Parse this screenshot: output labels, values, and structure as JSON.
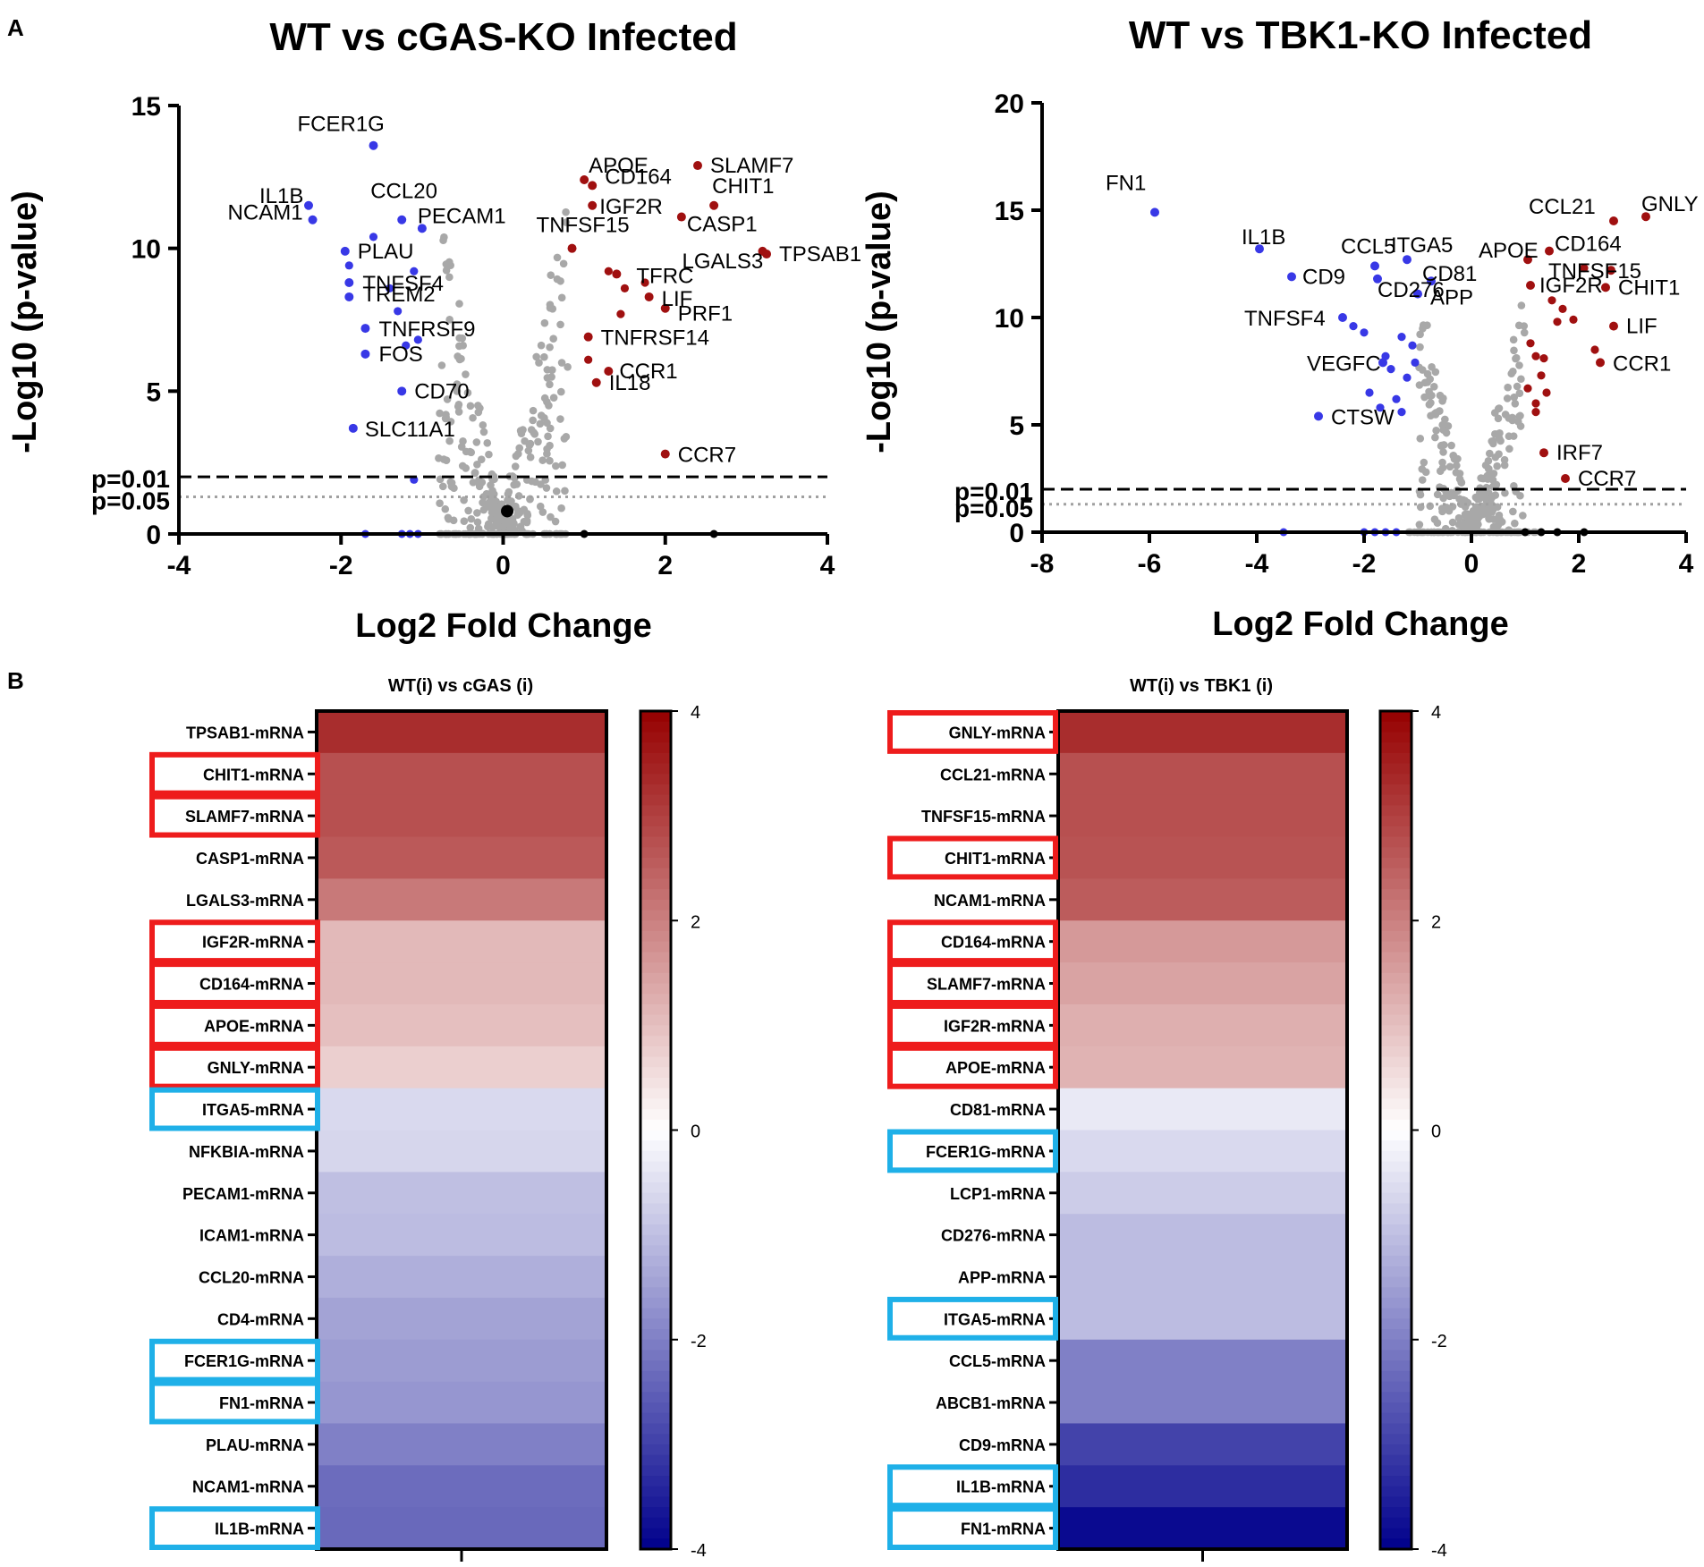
{
  "panels": {
    "a": "A",
    "b": "B"
  },
  "chart_data": [
    {
      "type": "scatter",
      "title": "WT vs cGAS-KO Infected",
      "xlabel": "Log2 Fold Change",
      "ylabel": "-Log10 (p-value)",
      "xlim": [
        -4,
        4
      ],
      "ylim": [
        0,
        15
      ],
      "xticks": [
        "-4",
        "-2",
        "0",
        "2",
        "4"
      ],
      "yticks": [
        "0",
        "5",
        "10",
        "15"
      ],
      "thresholds": [
        {
          "label": "p=0.01",
          "y": 2.0,
          "style": "dashed"
        },
        {
          "label": "p=0.05",
          "y": 1.3,
          "style": "dotted"
        }
      ],
      "colors": {
        "down": "#3838e6",
        "up": "#a01010",
        "ns": "#a8a8a8",
        "zero": "#000000"
      },
      "labeled_points": [
        {
          "gene": "FCER1G",
          "x": -1.6,
          "y": 13.6,
          "dir": "down"
        },
        {
          "gene": "IL1B",
          "x": -2.4,
          "y": 11.5,
          "dir": "down"
        },
        {
          "gene": "NCAM1",
          "x": -2.35,
          "y": 11.0,
          "dir": "down"
        },
        {
          "gene": "CCL20",
          "x": -1.25,
          "y": 11.0,
          "dir": "down"
        },
        {
          "gene": "PECAM1",
          "x": -1.0,
          "y": 10.7,
          "dir": "down"
        },
        {
          "gene": "PLAU",
          "x": -1.95,
          "y": 9.9,
          "dir": "down"
        },
        {
          "gene": "TNFSF4",
          "x": -1.9,
          "y": 8.8,
          "dir": "down"
        },
        {
          "gene": "TREM2",
          "x": -1.9,
          "y": 8.3,
          "dir": "down"
        },
        {
          "gene": "TNFRSF9",
          "x": -1.7,
          "y": 7.2,
          "dir": "down"
        },
        {
          "gene": "FOS",
          "x": -1.7,
          "y": 6.3,
          "dir": "down"
        },
        {
          "gene": "CD70",
          "x": -1.25,
          "y": 5.0,
          "dir": "down"
        },
        {
          "gene": "SLC11A1",
          "x": -1.85,
          "y": 3.7,
          "dir": "down"
        },
        {
          "gene": "APOE",
          "x": 1.0,
          "y": 12.4,
          "dir": "up"
        },
        {
          "gene": "SLAMF7",
          "x": 2.4,
          "y": 12.9,
          "dir": "up"
        },
        {
          "gene": "CD164",
          "x": 1.1,
          "y": 12.2,
          "dir": "up"
        },
        {
          "gene": "CHIT1",
          "x": 2.6,
          "y": 11.5,
          "dir": "up"
        },
        {
          "gene": "IGF2R",
          "x": 1.1,
          "y": 11.5,
          "dir": "up"
        },
        {
          "gene": "CASP1",
          "x": 2.2,
          "y": 11.1,
          "dir": "up"
        },
        {
          "gene": "TNFSF15",
          "x": 0.85,
          "y": 10.0,
          "dir": "up"
        },
        {
          "gene": "LGALS3",
          "x": 3.2,
          "y": 9.9,
          "dir": "up"
        },
        {
          "gene": "TPSAB1",
          "x": 3.25,
          "y": 9.8,
          "dir": "up"
        },
        {
          "gene": "TFRC",
          "x": 1.4,
          "y": 9.1,
          "dir": "up"
        },
        {
          "gene": "LIF",
          "x": 1.8,
          "y": 8.3,
          "dir": "up"
        },
        {
          "gene": "PRF1",
          "x": 2.0,
          "y": 7.9,
          "dir": "up"
        },
        {
          "gene": "TNFRSF14",
          "x": 1.05,
          "y": 6.9,
          "dir": "up"
        },
        {
          "gene": "CCR1",
          "x": 1.3,
          "y": 5.7,
          "dir": "up"
        },
        {
          "gene": "IL18",
          "x": 1.15,
          "y": 5.3,
          "dir": "up"
        },
        {
          "gene": "CCR7",
          "x": 2.0,
          "y": 2.8,
          "dir": "up"
        }
      ]
    },
    {
      "type": "scatter",
      "title": "WT vs TBK1-KO Infected",
      "xlabel": "Log2 Fold Change",
      "ylabel": "-Log10 (p-value)",
      "xlim": [
        -8,
        4
      ],
      "ylim": [
        0,
        20
      ],
      "xticks": [
        "-8",
        "-6",
        "-4",
        "-2",
        "0",
        "2",
        "4"
      ],
      "yticks": [
        "0",
        "5",
        "10",
        "15",
        "20"
      ],
      "thresholds": [
        {
          "label": "p=0.01",
          "y": 2.0,
          "style": "dashed"
        },
        {
          "label": "p=0.05",
          "y": 1.3,
          "style": "dotted"
        }
      ],
      "colors": {
        "down": "#3838e6",
        "up": "#a01010",
        "ns": "#a8a8a8",
        "zero": "#000000"
      },
      "labeled_points": [
        {
          "gene": "FN1",
          "x": -5.9,
          "y": 14.9,
          "dir": "down"
        },
        {
          "gene": "IL1B",
          "x": -3.95,
          "y": 13.2,
          "dir": "down"
        },
        {
          "gene": "CD9",
          "x": -3.35,
          "y": 11.9,
          "dir": "down"
        },
        {
          "gene": "CCL5",
          "x": -1.8,
          "y": 12.4,
          "dir": "down"
        },
        {
          "gene": "ITGA5",
          "x": -1.2,
          "y": 12.7,
          "dir": "down"
        },
        {
          "gene": "CD276",
          "x": -1.75,
          "y": 11.8,
          "dir": "down"
        },
        {
          "gene": "CD81",
          "x": -0.75,
          "y": 11.7,
          "dir": "down"
        },
        {
          "gene": "APP",
          "x": -1.0,
          "y": 11.1,
          "dir": "down"
        },
        {
          "gene": "TNFSF4",
          "x": -2.4,
          "y": 10.0,
          "dir": "down"
        },
        {
          "gene": "VEGFC",
          "x": -1.65,
          "y": 7.9,
          "dir": "down"
        },
        {
          "gene": "CTSW",
          "x": -2.85,
          "y": 5.4,
          "dir": "down"
        },
        {
          "gene": "APOE",
          "x": 1.05,
          "y": 12.7,
          "dir": "up"
        },
        {
          "gene": "CD164",
          "x": 1.45,
          "y": 13.1,
          "dir": "up"
        },
        {
          "gene": "CCL21",
          "x": 2.65,
          "y": 14.5,
          "dir": "up"
        },
        {
          "gene": "GNLY",
          "x": 3.25,
          "y": 14.7,
          "dir": "up"
        },
        {
          "gene": "TNFSF15",
          "x": 2.6,
          "y": 12.2,
          "dir": "up"
        },
        {
          "gene": "IGF2R",
          "x": 1.1,
          "y": 11.5,
          "dir": "up"
        },
        {
          "gene": "CHIT1",
          "x": 2.5,
          "y": 11.4,
          "dir": "up"
        },
        {
          "gene": "LIF",
          "x": 2.65,
          "y": 9.6,
          "dir": "up"
        },
        {
          "gene": "CCR1",
          "x": 2.4,
          "y": 7.9,
          "dir": "up"
        },
        {
          "gene": "IRF7",
          "x": 1.35,
          "y": 3.7,
          "dir": "up"
        },
        {
          "gene": "CCR7",
          "x": 1.75,
          "y": 2.5,
          "dir": "up"
        }
      ]
    },
    {
      "type": "heatmap",
      "title": "WT(i) vs cGAS (i)",
      "colorbar": {
        "min": -4,
        "max": 4,
        "ticks": [
          "4",
          "2",
          "0",
          "-2",
          "-4"
        ]
      },
      "highlight_colors": {
        "up": "#ee1c1c",
        "down": "#1fb0e8"
      },
      "rows": [
        {
          "label": "TPSAB1-mRNA",
          "value": 3.3,
          "box": ""
        },
        {
          "label": "CHIT1-mRNA",
          "value": 2.75,
          "box": "up"
        },
        {
          "label": "SLAMF7-mRNA",
          "value": 2.75,
          "box": "up"
        },
        {
          "label": "CASP1-mRNA",
          "value": 2.6,
          "box": ""
        },
        {
          "label": "LGALS3-mRNA",
          "value": 2.1,
          "box": ""
        },
        {
          "label": "IGF2R-mRNA",
          "value": 1.1,
          "box": "up"
        },
        {
          "label": "CD164-mRNA",
          "value": 1.1,
          "box": "up"
        },
        {
          "label": "APOE-mRNA",
          "value": 1.0,
          "box": "up"
        },
        {
          "label": "GNLY-mRNA",
          "value": 0.75,
          "box": "up"
        },
        {
          "label": "ITGA5-mRNA",
          "value": -0.6,
          "box": "down"
        },
        {
          "label": "NFKBIA-mRNA",
          "value": -0.65,
          "box": ""
        },
        {
          "label": "PECAM1-mRNA",
          "value": -1.0,
          "box": ""
        },
        {
          "label": "ICAM1-mRNA",
          "value": -1.05,
          "box": ""
        },
        {
          "label": "CCL20-mRNA",
          "value": -1.25,
          "box": ""
        },
        {
          "label": "CD4-mRNA",
          "value": -1.45,
          "box": ""
        },
        {
          "label": "FCER1G-mRNA",
          "value": -1.55,
          "box": "down"
        },
        {
          "label": "FN1-mRNA",
          "value": -1.65,
          "box": "down"
        },
        {
          "label": "PLAU-mRNA",
          "value": -2.0,
          "box": ""
        },
        {
          "label": "NCAM1-mRNA",
          "value": -2.3,
          "box": ""
        },
        {
          "label": "IL1B-mRNA",
          "value": -2.35,
          "box": "down"
        }
      ]
    },
    {
      "type": "heatmap",
      "title": "WT(i) vs TBK1 (i)",
      "colorbar": {
        "min": -4,
        "max": 4,
        "ticks": [
          "4",
          "2",
          "0",
          "-2",
          "-4"
        ]
      },
      "highlight_colors": {
        "up": "#ee1c1c",
        "down": "#1fb0e8"
      },
      "rows": [
        {
          "label": "GNLY-mRNA",
          "value": 3.3,
          "box": "up"
        },
        {
          "label": "CCL21-mRNA",
          "value": 2.75,
          "box": ""
        },
        {
          "label": "TNFSF15-mRNA",
          "value": 2.75,
          "box": ""
        },
        {
          "label": "CHIT1-mRNA",
          "value": 2.7,
          "box": "up"
        },
        {
          "label": "NCAM1-mRNA",
          "value": 2.55,
          "box": ""
        },
        {
          "label": "CD164-mRNA",
          "value": 1.6,
          "box": "up"
        },
        {
          "label": "SLAMF7-mRNA",
          "value": 1.45,
          "box": "up"
        },
        {
          "label": "IGF2R-mRNA",
          "value": 1.25,
          "box": "up"
        },
        {
          "label": "APOE-mRNA",
          "value": 1.2,
          "box": "up"
        },
        {
          "label": "CD81-mRNA",
          "value": -0.35,
          "box": ""
        },
        {
          "label": "FCER1G-mRNA",
          "value": -0.6,
          "box": "down"
        },
        {
          "label": "LCP1-mRNA",
          "value": -0.8,
          "box": ""
        },
        {
          "label": "CD276-mRNA",
          "value": -1.05,
          "box": ""
        },
        {
          "label": "APP-mRNA",
          "value": -1.05,
          "box": ""
        },
        {
          "label": "ITGA5-mRNA",
          "value": -1.05,
          "box": "down"
        },
        {
          "label": "CCL5-mRNA",
          "value": -2.0,
          "box": ""
        },
        {
          "label": "ABCB1-mRNA",
          "value": -2.0,
          "box": ""
        },
        {
          "label": "CD9-mRNA",
          "value": -2.95,
          "box": ""
        },
        {
          "label": "IL1B-mRNA",
          "value": -3.3,
          "box": "down"
        },
        {
          "label": "FN1-mRNA",
          "value": -3.85,
          "box": "down"
        }
      ]
    }
  ]
}
